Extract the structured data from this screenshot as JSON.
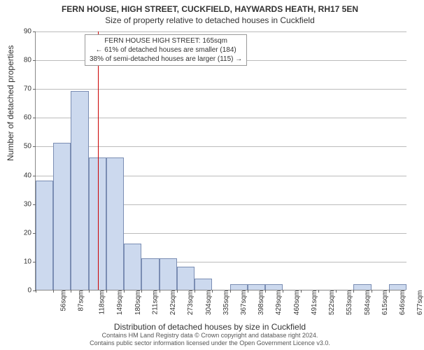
{
  "titles": {
    "main": "FERN HOUSE, HIGH STREET, CUCKFIELD, HAYWARDS HEATH, RH17 5EN",
    "sub": "Size of property relative to detached houses in Cuckfield"
  },
  "axes": {
    "y_label": "Number of detached properties",
    "x_label": "Distribution of detached houses by size in Cuckfield",
    "ylim": [
      0,
      90
    ],
    "ytick_step": 10,
    "label_fontsize": 12,
    "tick_fontsize": 10
  },
  "annotation": {
    "line1": "FERN HOUSE HIGH STREET: 165sqm",
    "line2": "← 61% of detached houses are smaller (184)",
    "line3": "38% of semi-detached houses are larger (115) →",
    "refline_x": 165,
    "refline_color": "#cc0000",
    "box_border": "#999999"
  },
  "chart": {
    "type": "histogram",
    "x_start": 56,
    "x_step": 31,
    "x_unit": "sqm",
    "bar_fill": "#ccd9ee",
    "bar_stroke": "#7a8db3",
    "bar_width_ratio": 1.0,
    "categories": [
      "56sqm",
      "87sqm",
      "118sqm",
      "149sqm",
      "180sqm",
      "211sqm",
      "242sqm",
      "273sqm",
      "304sqm",
      "335sqm",
      "367sqm",
      "398sqm",
      "429sqm",
      "460sqm",
      "491sqm",
      "522sqm",
      "553sqm",
      "584sqm",
      "615sqm",
      "646sqm",
      "677sqm"
    ],
    "values": [
      38,
      51,
      69,
      46,
      46,
      16,
      11,
      11,
      8,
      4,
      0,
      2,
      2,
      2,
      0,
      0,
      0,
      0,
      2,
      0,
      2
    ]
  },
  "colors": {
    "background": "#ffffff",
    "grid": "#bbbbbb",
    "axis": "#888888",
    "text": "#333333"
  },
  "attribution": {
    "line1": "Contains HM Land Registry data © Crown copyright and database right 2024.",
    "line2": "Contains public sector information licensed under the Open Government Licence v3.0."
  }
}
